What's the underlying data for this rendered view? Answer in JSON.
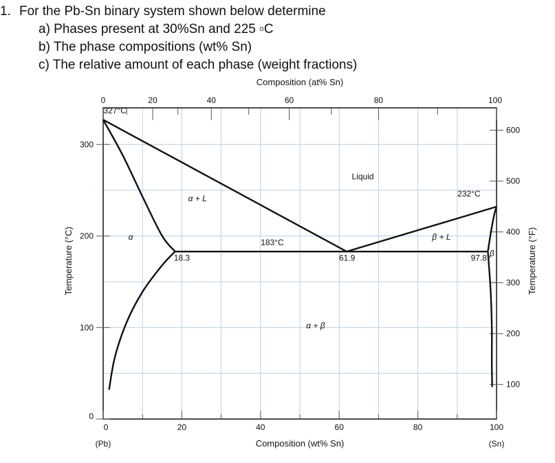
{
  "question": {
    "number": "1.",
    "text": "For the Pb-Sn binary system shown below determine",
    "parts": [
      "a) Phases present at 30%Sn and 225 ▫C",
      "b) The phase compositions (wt% Sn)",
      "c) The relative amount of each phase (weight fractions)"
    ]
  },
  "chart_data": {
    "type": "line",
    "title": "",
    "xlabel": "Composition (wt% Sn)",
    "x2label": "Composition (at% Sn)",
    "ylabel": "Temperature (°C)",
    "y2label": "Temperature (°F)",
    "xlim": [
      0,
      100
    ],
    "ylim": [
      0,
      340
    ],
    "grid": true,
    "x_ticks": [
      "0",
      "20",
      "40",
      "60",
      "80",
      "100"
    ],
    "x_tick_values": [
      0,
      20,
      40,
      60,
      80,
      100
    ],
    "x_end_labels": [
      "(Pb)",
      "(Sn)"
    ],
    "at_ticks": [
      "0",
      "20",
      "40",
      "60",
      "80",
      "100"
    ],
    "at_tick_values": [
      0,
      12.6,
      27.5,
      47.3,
      70.0,
      100
    ],
    "y_ticks": [
      "0",
      "100",
      "200",
      "300"
    ],
    "y_tick_values": [
      0,
      100,
      200,
      300
    ],
    "f_ticks": [
      "100",
      "200",
      "300",
      "400",
      "500",
      "600"
    ],
    "f_tick_values_c": [
      37.8,
      93.3,
      148.9,
      204.4,
      260,
      315.6
    ],
    "series": [
      {
        "x": [
          0,
          61.9,
          100
        ],
        "y": [
          327,
          183,
          232
        ]
      },
      {
        "x": [
          0,
          5,
          10,
          15,
          18.3
        ],
        "y": [
          327,
          288,
          243,
          200,
          183
        ]
      },
      {
        "x": [
          18.3,
          15,
          10,
          6,
          3,
          1.5
        ],
        "y": [
          183,
          168,
          139,
          106,
          68,
          32
        ]
      },
      {
        "x": [
          97.8,
          98.6,
          99.4,
          100
        ],
        "y": [
          183,
          205,
          223,
          232
        ]
      },
      {
        "x": [
          97.8,
          98.5,
          98.8,
          98.8,
          98.9
        ],
        "y": [
          183,
          140,
          100,
          60,
          35
        ]
      },
      {
        "x": [
          18.3,
          97.8
        ],
        "y": [
          183,
          183
        ]
      }
    ],
    "annotations": [
      {
        "text": "327°C",
        "x": 3,
        "y": 334
      },
      {
        "text": "Liquid",
        "x": 66,
        "y": 262
      },
      {
        "text": "232°C",
        "x": 93,
        "y": 243
      },
      {
        "text": "α + L",
        "x": 24,
        "y": 238
      },
      {
        "text": "β + L",
        "x": 86,
        "y": 196
      },
      {
        "text": "α",
        "x": 7,
        "y": 196
      },
      {
        "text": "183°C",
        "x": 43,
        "y": 190
      },
      {
        "text": "β",
        "x": 98.8,
        "y": 178
      },
      {
        "text": "18.3",
        "x": 20,
        "y": 173
      },
      {
        "text": "61.9",
        "x": 62,
        "y": 173
      },
      {
        "text": "97.8",
        "x": 95.5,
        "y": 173
      },
      {
        "text": "α + β",
        "x": 54,
        "y": 99
      }
    ]
  }
}
